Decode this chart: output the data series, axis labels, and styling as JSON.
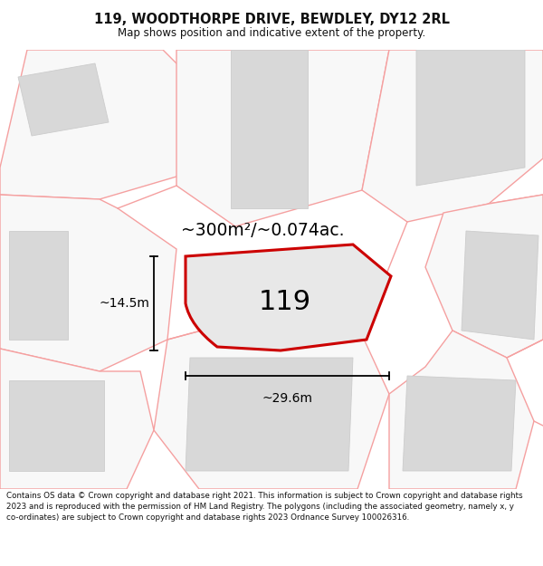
{
  "title_line1": "119, WOODTHORPE DRIVE, BEWDLEY, DY12 2RL",
  "title_line2": "Map shows position and indicative extent of the property.",
  "footer_text": "Contains OS data © Crown copyright and database right 2021. This information is subject to Crown copyright and database rights 2023 and is reproduced with the permission of HM Land Registry. The polygons (including the associated geometry, namely x, y co-ordinates) are subject to Crown copyright and database rights 2023 Ordnance Survey 100026316.",
  "bg_color": "#ffffff",
  "map_bg_color": "#ffffff",
  "pink": "#f5a0a0",
  "building_fill": "#d8d8d8",
  "building_edge": "#cccccc",
  "main_poly_fill": "#e8e8e8",
  "main_poly_edge": "#cc0000",
  "area_label": "~300m²/~0.074ac.",
  "width_label": "~29.6m",
  "height_label": "~14.5m",
  "property_number": "119",
  "dim_color": "#000000"
}
